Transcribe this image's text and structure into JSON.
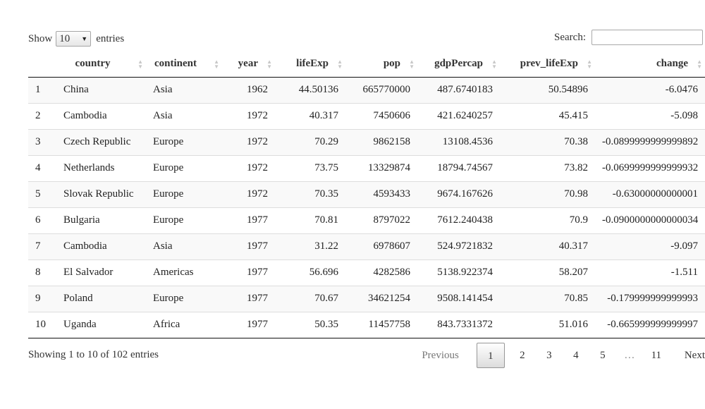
{
  "length_menu": {
    "prefix": "Show",
    "value": "10",
    "suffix": "entries"
  },
  "search": {
    "label": "Search:",
    "value": ""
  },
  "columns": [
    "",
    "country",
    "continent",
    "year",
    "lifeExp",
    "pop",
    "gdpPercap",
    "prev_lifeExp",
    "change"
  ],
  "rows": [
    [
      "1",
      "China",
      "Asia",
      "1962",
      "44.50136",
      "665770000",
      "487.6740183",
      "50.54896",
      "-6.0476"
    ],
    [
      "2",
      "Cambodia",
      "Asia",
      "1972",
      "40.317",
      "7450606",
      "421.6240257",
      "45.415",
      "-5.098"
    ],
    [
      "3",
      "Czech Republic",
      "Europe",
      "1972",
      "70.29",
      "9862158",
      "13108.4536",
      "70.38",
      "-0.0899999999999892"
    ],
    [
      "4",
      "Netherlands",
      "Europe",
      "1972",
      "73.75",
      "13329874",
      "18794.74567",
      "73.82",
      "-0.0699999999999932"
    ],
    [
      "5",
      "Slovak Republic",
      "Europe",
      "1972",
      "70.35",
      "4593433",
      "9674.167626",
      "70.98",
      "-0.63000000000001"
    ],
    [
      "6",
      "Bulgaria",
      "Europe",
      "1977",
      "70.81",
      "8797022",
      "7612.240438",
      "70.9",
      "-0.0900000000000034"
    ],
    [
      "7",
      "Cambodia",
      "Asia",
      "1977",
      "31.22",
      "6978607",
      "524.9721832",
      "40.317",
      "-9.097"
    ],
    [
      "8",
      "El Salvador",
      "Americas",
      "1977",
      "56.696",
      "4282586",
      "5138.922374",
      "58.207",
      "-1.511"
    ],
    [
      "9",
      "Poland",
      "Europe",
      "1977",
      "70.67",
      "34621254",
      "9508.141454",
      "70.85",
      "-0.179999999999993"
    ],
    [
      "10",
      "Uganda",
      "Africa",
      "1977",
      "50.35",
      "11457758",
      "843.7331372",
      "51.016",
      "-0.665999999999997"
    ]
  ],
  "info": "Showing 1 to 10 of 102 entries",
  "pagination": {
    "previous": "Previous",
    "pages": [
      "1",
      "2",
      "3",
      "4",
      "5",
      "…",
      "11"
    ],
    "current": "1",
    "next": "Next"
  }
}
